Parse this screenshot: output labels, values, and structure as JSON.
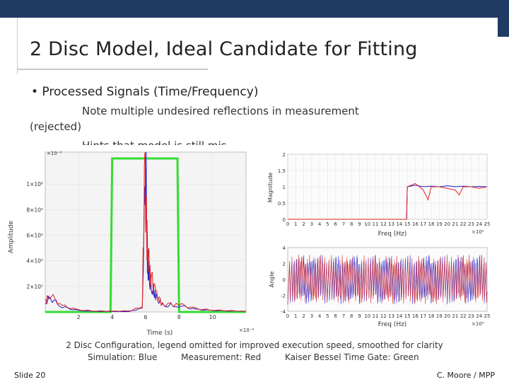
{
  "slide": {
    "title": "2 Disc Model, Ideal Candidate for Fitting",
    "bullet": "• Processed Signals (Time/Frequency)",
    "note_line1": "Note multiple undesired reflections in measurement",
    "note_line2": "(rejected)",
    "note_line3": "Hints that model is still mis",
    "caption_line1": "2 Disc Configuration, legend omitted for improved execution speed, smoothed for clarity",
    "caption_sim": "Simulation: Blue",
    "caption_meas": "Measurement: Red",
    "caption_gate": "Kaiser Bessel Time Gate: Green",
    "slide_number": "Slide 20",
    "footer": "C. Moore / MPP"
  },
  "colors": {
    "header_bar": "#1f3b63",
    "simulation": "#1f1fd0",
    "measurement": "#e02020",
    "time_gate": "#33dd33"
  },
  "chart_data": [
    {
      "type": "line",
      "xlabel": "Time (s)",
      "ylabel": "Amplitude",
      "x_exponent": "×10⁻⁹",
      "y_exponent": "×10⁻³",
      "xlim": [
        0,
        12
      ],
      "ylim": [
        0,
        1250000.0
      ],
      "x_ticks": [
        "2",
        "4",
        "6",
        "8",
        "10"
      ],
      "y_ticks": [
        "2×10⁵",
        "4×10⁵",
        "6×10⁵",
        "8×10⁵",
        "1×10⁶"
      ],
      "series": [
        {
          "name": "Kaiser Bessel Time Gate",
          "color": "#33dd33",
          "x": [
            0,
            3.9,
            4.0,
            7.9,
            8.0,
            12
          ],
          "y": [
            0,
            0,
            1200000.0,
            1200000.0,
            0,
            0
          ]
        },
        {
          "name": "Simulation",
          "color": "#1f1fd0",
          "x": [
            0,
            0.3,
            1.0,
            2.0,
            3.0,
            5.0,
            5.8,
            6.0,
            6.1,
            6.2,
            6.4,
            6.6,
            7.0,
            8.0,
            9.0,
            10.0,
            11.0,
            12
          ],
          "y": [
            80000,
            110000,
            40000,
            10000,
            5000,
            3000,
            30000,
            1220000.0,
            400000,
            250000,
            180000,
            120000,
            50000,
            50000,
            20000,
            12000,
            8000,
            5000
          ]
        },
        {
          "name": "Measurement",
          "color": "#e02020",
          "x": [
            0,
            0.2,
            1.0,
            2.0,
            3.0,
            4.0,
            5.0,
            5.8,
            5.95,
            6.1,
            6.3,
            6.6,
            7.0,
            8.0,
            9.0,
            10.0,
            11.0,
            12
          ],
          "y": [
            60000,
            140000,
            50000,
            15000,
            8000,
            6000,
            8000,
            40000,
            1150000.0,
            500000,
            300000,
            150000,
            60000,
            60000,
            25000,
            15000,
            10000,
            5000
          ]
        }
      ]
    },
    {
      "type": "line",
      "ylabel": "Magnitude",
      "xlabel": "Freq (Hz)",
      "x_exponent": "×10⁹",
      "xlim": [
        0,
        25
      ],
      "ylim": [
        0,
        2
      ],
      "x_ticks": [
        "0",
        "1",
        "2",
        "3",
        "4",
        "5",
        "6",
        "7",
        "8",
        "9",
        "10",
        "11",
        "12",
        "13",
        "14",
        "15",
        "16",
        "17",
        "18",
        "19",
        "20",
        "21",
        "22",
        "23",
        "24",
        "25"
      ],
      "y_ticks": [
        "0",
        "0.5",
        "1",
        "1.5",
        "2"
      ],
      "series": [
        {
          "name": "Simulation",
          "color": "#1f1fd0",
          "x": [
            0,
            14.9,
            15.0,
            16,
            17,
            18,
            19,
            20,
            21,
            22,
            23,
            24,
            25
          ],
          "y": [
            0,
            0,
            1.0,
            1.05,
            1.0,
            1.02,
            1.0,
            1.03,
            1.0,
            1.02,
            1.0,
            1.01,
            1.0
          ]
        },
        {
          "name": "Measurement",
          "color": "#e02020",
          "x": [
            0,
            14.9,
            15.0,
            16,
            17,
            17.6,
            18,
            19,
            20,
            21,
            21.5,
            22,
            23,
            24,
            25
          ],
          "y": [
            0,
            0,
            1.0,
            1.1,
            0.9,
            0.6,
            1.0,
            1.0,
            0.95,
            0.9,
            0.75,
            1.0,
            1.0,
            0.95,
            1.0
          ]
        }
      ]
    },
    {
      "type": "line",
      "ylabel": "Angle",
      "xlabel": "Freq (Hz)",
      "x_exponent": "×10⁹",
      "xlim": [
        0,
        25
      ],
      "ylim": [
        -4,
        4
      ],
      "x_ticks": [
        "0",
        "1",
        "2",
        "3",
        "4",
        "5",
        "6",
        "7",
        "8",
        "9",
        "10",
        "11",
        "12",
        "13",
        "14",
        "15",
        "16",
        "17",
        "18",
        "19",
        "20",
        "21",
        "22",
        "23",
        "24",
        "25"
      ],
      "y_ticks": [
        "-4",
        "-2",
        "0",
        "2",
        "4"
      ],
      "series": [
        {
          "name": "Simulation",
          "color": "#1f1fd0",
          "pattern": "oscillating phase ±3.14"
        },
        {
          "name": "Measurement",
          "color": "#e02020",
          "pattern": "oscillating phase ±3.14"
        }
      ]
    }
  ]
}
